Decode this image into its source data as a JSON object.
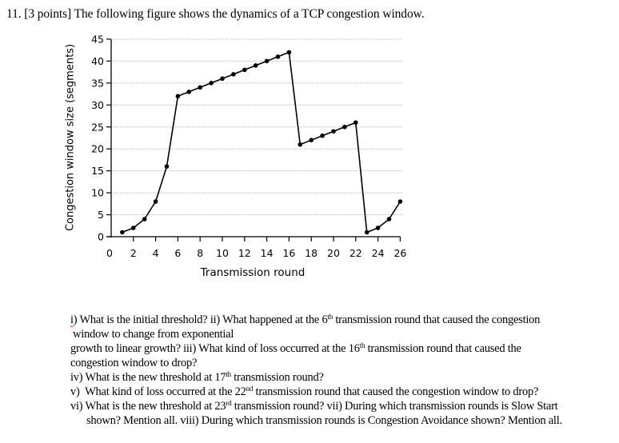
{
  "question": {
    "number": "11.",
    "points": "[3 points]",
    "header": "11. [3 points] The following figure shows the dynamics of a TCP congestion window."
  },
  "chart_data": {
    "type": "line",
    "title": "",
    "xlabel": "Transmission round",
    "ylabel": "Congestion window size (segments)",
    "xlim": [
      0,
      26
    ],
    "ylim": [
      0,
      45
    ],
    "xticks": [
      0,
      2,
      4,
      6,
      8,
      10,
      12,
      14,
      16,
      18,
      20,
      22,
      24,
      26
    ],
    "yticks": [
      0,
      5,
      10,
      15,
      20,
      25,
      30,
      35,
      40,
      45
    ],
    "grid": "horizontal",
    "legend": null,
    "series": [
      {
        "name": "Congestion window",
        "x": [
          1,
          2,
          3,
          4,
          5,
          6,
          7,
          8,
          9,
          10,
          11,
          12,
          13,
          14,
          15,
          16,
          17,
          18,
          19,
          20,
          21,
          22,
          23,
          24,
          25,
          26
        ],
        "values": [
          1,
          2,
          4,
          8,
          16,
          32,
          33,
          34,
          35,
          36,
          37,
          38,
          39,
          40,
          41,
          42,
          21,
          22,
          23,
          24,
          25,
          26,
          1,
          2,
          4,
          8
        ],
        "marker": "dot",
        "color": "#000000"
      }
    ]
  },
  "questions": {
    "line1_a": "i) What is the initial threshold? ii) What happened at the 6",
    "line1_sup": "th",
    "line1_b": " transmission round that caused the congestion",
    "line2": "window to change from exponential",
    "line3_a": "growth to linear growth? iii) What kind of loss occurred at the 16",
    "line3_sup": "th",
    "line3_b": " transmission round that caused the",
    "line4": "congestion window to drop?",
    "line5_a": "iv) What is the new threshold at 17",
    "line5_sup": "th",
    "line5_b": " transmission round?",
    "line6_a": "v)  What kind of loss occurred at the 22",
    "line6_sup": "nd",
    "line6_b": " transmission round that caused the congestion window to drop?",
    "line7_a": "vi) What is the new threshold at 23",
    "line7_sup": "rd",
    "line7_b": " transmission round? vii) During which transmission rounds is Slow Start",
    "line8": "shown? Mention all. viii) During which transmission rounds is Congestion Avoidance shown? Mention all."
  }
}
